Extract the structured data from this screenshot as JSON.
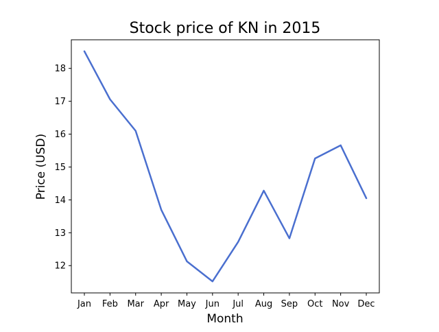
{
  "chart_data": {
    "type": "line",
    "title": "Stock price of KN in 2015",
    "xlabel": "Month",
    "ylabel": "Price (USD)",
    "categories": [
      "Jan",
      "Feb",
      "Mar",
      "Apr",
      "May",
      "Jun",
      "Jul",
      "Aug",
      "Sep",
      "Oct",
      "Nov",
      "Dec"
    ],
    "series": [
      {
        "values": [
          18.52,
          17.06,
          16.1,
          13.7,
          12.13,
          11.52,
          12.72,
          14.28,
          12.83,
          15.26,
          15.66,
          14.05
        ],
        "color": "#4a6fcf"
      }
    ],
    "yticks": [
      12,
      13,
      14,
      15,
      16,
      17,
      18
    ],
    "ylim": [
      11.17,
      18.87
    ],
    "grid": false,
    "legend": "none"
  }
}
